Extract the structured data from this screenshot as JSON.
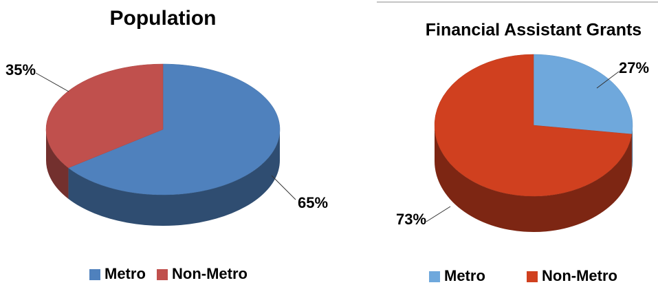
{
  "chart_data": [
    {
      "type": "pie",
      "title": "Population",
      "categories": [
        "Metro",
        "Non-Metro"
      ],
      "values": [
        65,
        35
      ],
      "value_labels": [
        "65%",
        "35%"
      ],
      "colors": [
        "#4f81bd",
        "#c0504d"
      ],
      "legend": "bottom"
    },
    {
      "type": "pie",
      "title": "Financial Assistant Grants",
      "categories": [
        "Metro",
        "Non-Metro"
      ],
      "values": [
        27,
        73
      ],
      "value_labels": [
        "27%",
        "73%"
      ],
      "colors": [
        "#6fa8dc",
        "#d0401f"
      ],
      "legend": "bottom"
    }
  ]
}
